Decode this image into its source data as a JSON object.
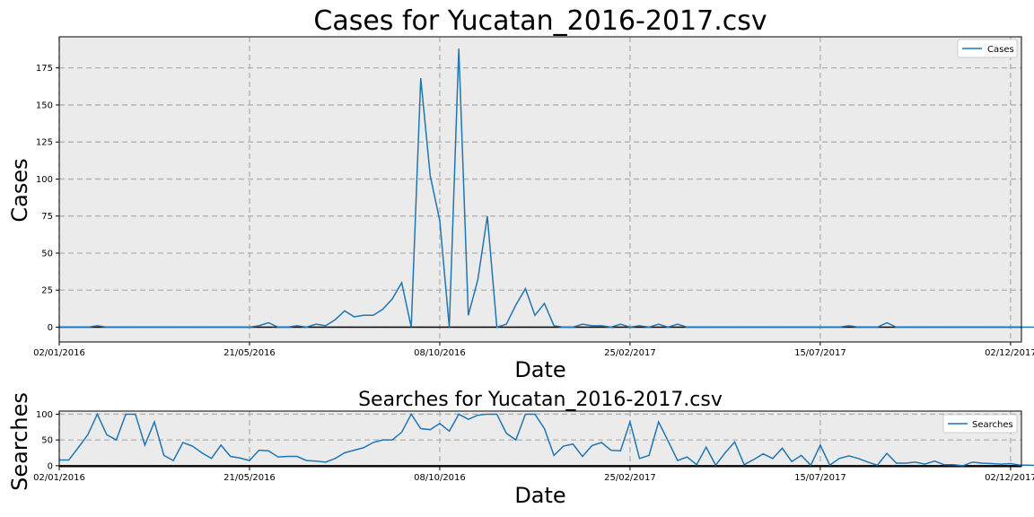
{
  "colors": {
    "line": "#1f77b4",
    "plot_background": "#ebebeb",
    "grid": "#b0b0b0",
    "zero_line": "#000000"
  },
  "x_tick_labels": [
    "02/01/2016",
    "21/05/2016",
    "08/10/2016",
    "25/02/2017",
    "15/07/2017",
    "02/12/2017"
  ],
  "chart_data": [
    {
      "type": "line",
      "title": "Cases for Yucatan_2016-2017.csv",
      "xlabel": "Date",
      "ylabel": "Cases",
      "xlim": [
        "2016-01-02",
        "2017-12-10"
      ],
      "ylim": [
        -10,
        196
      ],
      "yticks": [
        0,
        25,
        50,
        75,
        100,
        125,
        150,
        175
      ],
      "grid": true,
      "legend": "top-right",
      "x_start": "2016-01-02",
      "x_step_days": 7,
      "series": [
        {
          "name": "Cases",
          "values": [
            0,
            0,
            0,
            0,
            1,
            0,
            0,
            0,
            0,
            0,
            0,
            0,
            0,
            0,
            0,
            0,
            0,
            0,
            0,
            0,
            0,
            1,
            3,
            0,
            0,
            1,
            0,
            2,
            1,
            5,
            11,
            7,
            8,
            8,
            12,
            19,
            30,
            0,
            168,
            102,
            72,
            0,
            188,
            8,
            32,
            75,
            0,
            2,
            15,
            26,
            8,
            16,
            1,
            0,
            0,
            2,
            1,
            1,
            0,
            2,
            0,
            1,
            0,
            2,
            0,
            2,
            0,
            0,
            0,
            0,
            0,
            0,
            0,
            0,
            0,
            0,
            0,
            0,
            0,
            0,
            0,
            0,
            0,
            1,
            0,
            0,
            0,
            3,
            0,
            0,
            0,
            0,
            0,
            0,
            0,
            0,
            0,
            0,
            0,
            0,
            0,
            0,
            0,
            0,
            0,
            0,
            0,
            0,
            0
          ]
        }
      ]
    },
    {
      "type": "line",
      "title": "Searches for Yucatan_2016-2017.csv",
      "xlabel": "Date",
      "ylabel": "Searches",
      "xlim": [
        "2016-01-02",
        "2017-12-10"
      ],
      "ylim": [
        -2,
        106
      ],
      "yticks": [
        0,
        50,
        100
      ],
      "grid": true,
      "legend": "top-right",
      "x_start": "2016-01-02",
      "x_step_days": 7,
      "series": [
        {
          "name": "Searches",
          "values": [
            11,
            11,
            35,
            60,
            100,
            60,
            50,
            100,
            100,
            40,
            85,
            20,
            10,
            45,
            38,
            25,
            14,
            40,
            18,
            15,
            10,
            30,
            29,
            17,
            18,
            18,
            10,
            9,
            7,
            14,
            25,
            30,
            35,
            45,
            50,
            50,
            65,
            100,
            72,
            70,
            82,
            67,
            100,
            90,
            98,
            100,
            100,
            63,
            50,
            100,
            100,
            72,
            20,
            38,
            42,
            18,
            39,
            45,
            30,
            29,
            85,
            14,
            20,
            85,
            48,
            10,
            17,
            2,
            36,
            1,
            25,
            46,
            2,
            12,
            23,
            14,
            34,
            8,
            20,
            1,
            40,
            1,
            14,
            19,
            14,
            7,
            1,
            24,
            5,
            5,
            7,
            3,
            9,
            2,
            2,
            0,
            7,
            5,
            4,
            3,
            4,
            1,
            1,
            0,
            0,
            0,
            0,
            0,
            0
          ]
        }
      ]
    }
  ]
}
